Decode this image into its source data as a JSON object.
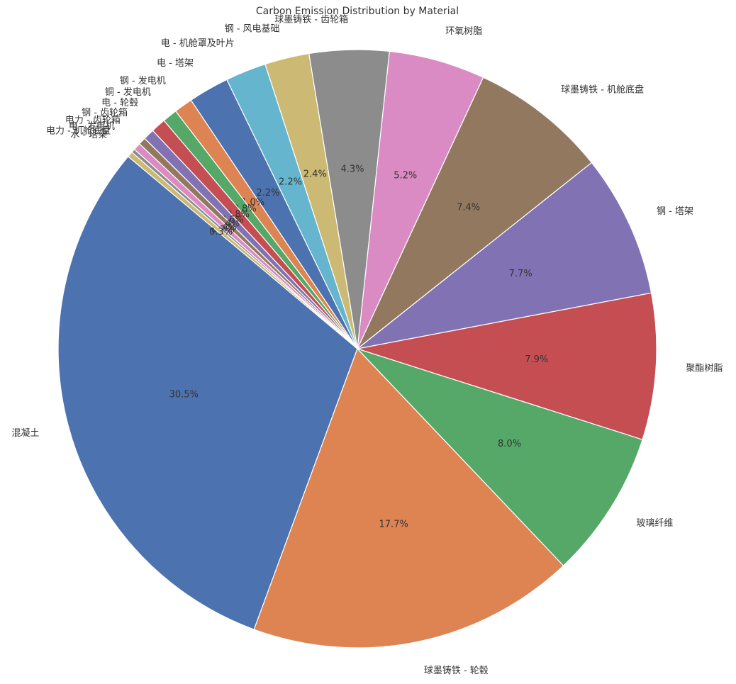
{
  "chart_data": {
    "type": "pie",
    "title": "Carbon Emission Distribution by Material",
    "categories": [
      "混凝土",
      "球墨铸铁 - 轮毂",
      "玻璃纤维",
      "聚酯树脂",
      "钢 - 塔架",
      "球墨铸铁 - 机舱底盘",
      "环氧树脂",
      "球墨铸铁 - 齿轮箱",
      "钢 - 风电基础",
      "电 - 机舱罩及叶片",
      "电 - 塔架",
      "钢 - 发电机",
      "铜 - 发电机",
      "电 - 轮毂",
      "钢 - 齿轮箱",
      "电力 - 齿轮箱",
      "电 - 发电机",
      "电力 - 机舱底盘",
      "水 - 塔架"
    ],
    "values": [
      30.5,
      17.7,
      8.0,
      7.9,
      7.7,
      7.4,
      5.2,
      4.3,
      2.4,
      2.2,
      2.2,
      1.0,
      0.8,
      0.8,
      0.6,
      0.4,
      0.4,
      0.2,
      0.3
    ],
    "value_labels": [
      "30.5%",
      "17.7%",
      "8.0%",
      "7.9%",
      "7.7%",
      "7.4%",
      "5.2%",
      "4.3%",
      "2.4%",
      "2.2%",
      "2.2%",
      "1.0%",
      "0.8%",
      "0.8%",
      "0.6%",
      "0.4%",
      "0.4%",
      "0.2%",
      "0.3%"
    ],
    "colors": [
      "#4c72b0",
      "#dd8452",
      "#55a868",
      "#c44e52",
      "#8172b3",
      "#937860",
      "#da8bc3",
      "#8c8c8c",
      "#ccb974",
      "#64b5cd",
      "#4c72b0",
      "#dd8452",
      "#55a868",
      "#c44e52",
      "#8172b3",
      "#937860",
      "#da8bc3",
      "#8c8c8c",
      "#ccb974"
    ],
    "start_angle": 140,
    "counterclockwise": true
  }
}
